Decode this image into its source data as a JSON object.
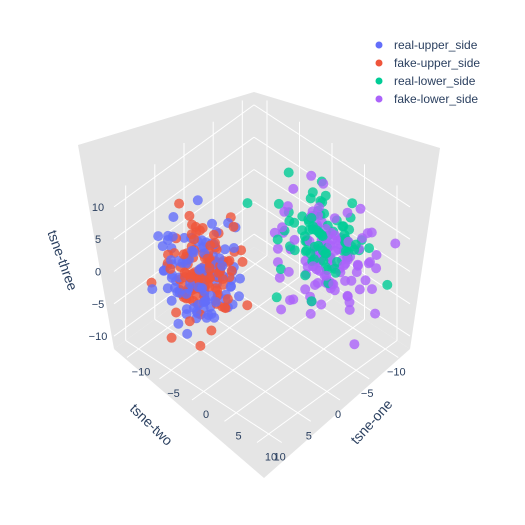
{
  "chart_data": {
    "type": "scatter",
    "dimensions": 3,
    "axes": {
      "x": {
        "title": "tsne-one",
        "ticks": [
          "−10",
          "−5",
          "0",
          "5",
          "10"
        ],
        "range": [
          -12,
          12
        ]
      },
      "y": {
        "title": "tsne-two",
        "ticks": [
          "−10",
          "−5",
          "0",
          "5",
          "10"
        ],
        "range": [
          -12,
          12
        ]
      },
      "z": {
        "title": "tsne-three",
        "ticks": [
          "−10",
          "−5",
          "0",
          "5",
          "10"
        ],
        "range": [
          -12,
          12
        ]
      }
    },
    "legend_position": "top-right",
    "grid": true,
    "series": [
      {
        "name": "real-upper_side",
        "color": "#636efa",
        "count": 110,
        "center": [
          -7,
          3,
          -3
        ],
        "spread": [
          2.5,
          2.5,
          3.5
        ]
      },
      {
        "name": "fake-upper_side",
        "color": "#ef553b",
        "count": 120,
        "center": [
          -6.5,
          2.5,
          -3
        ],
        "spread": [
          2.0,
          2.0,
          3.0
        ]
      },
      {
        "name": "real-lower_side",
        "color": "#00cc96",
        "count": 90,
        "center": [
          5,
          -4,
          6
        ],
        "spread": [
          3.0,
          2.5,
          3.0
        ]
      },
      {
        "name": "fake-lower_side",
        "color": "#ab63fa",
        "count": 110,
        "center": [
          6,
          -4,
          3
        ],
        "spread": [
          3.0,
          2.5,
          4.0
        ]
      }
    ]
  }
}
